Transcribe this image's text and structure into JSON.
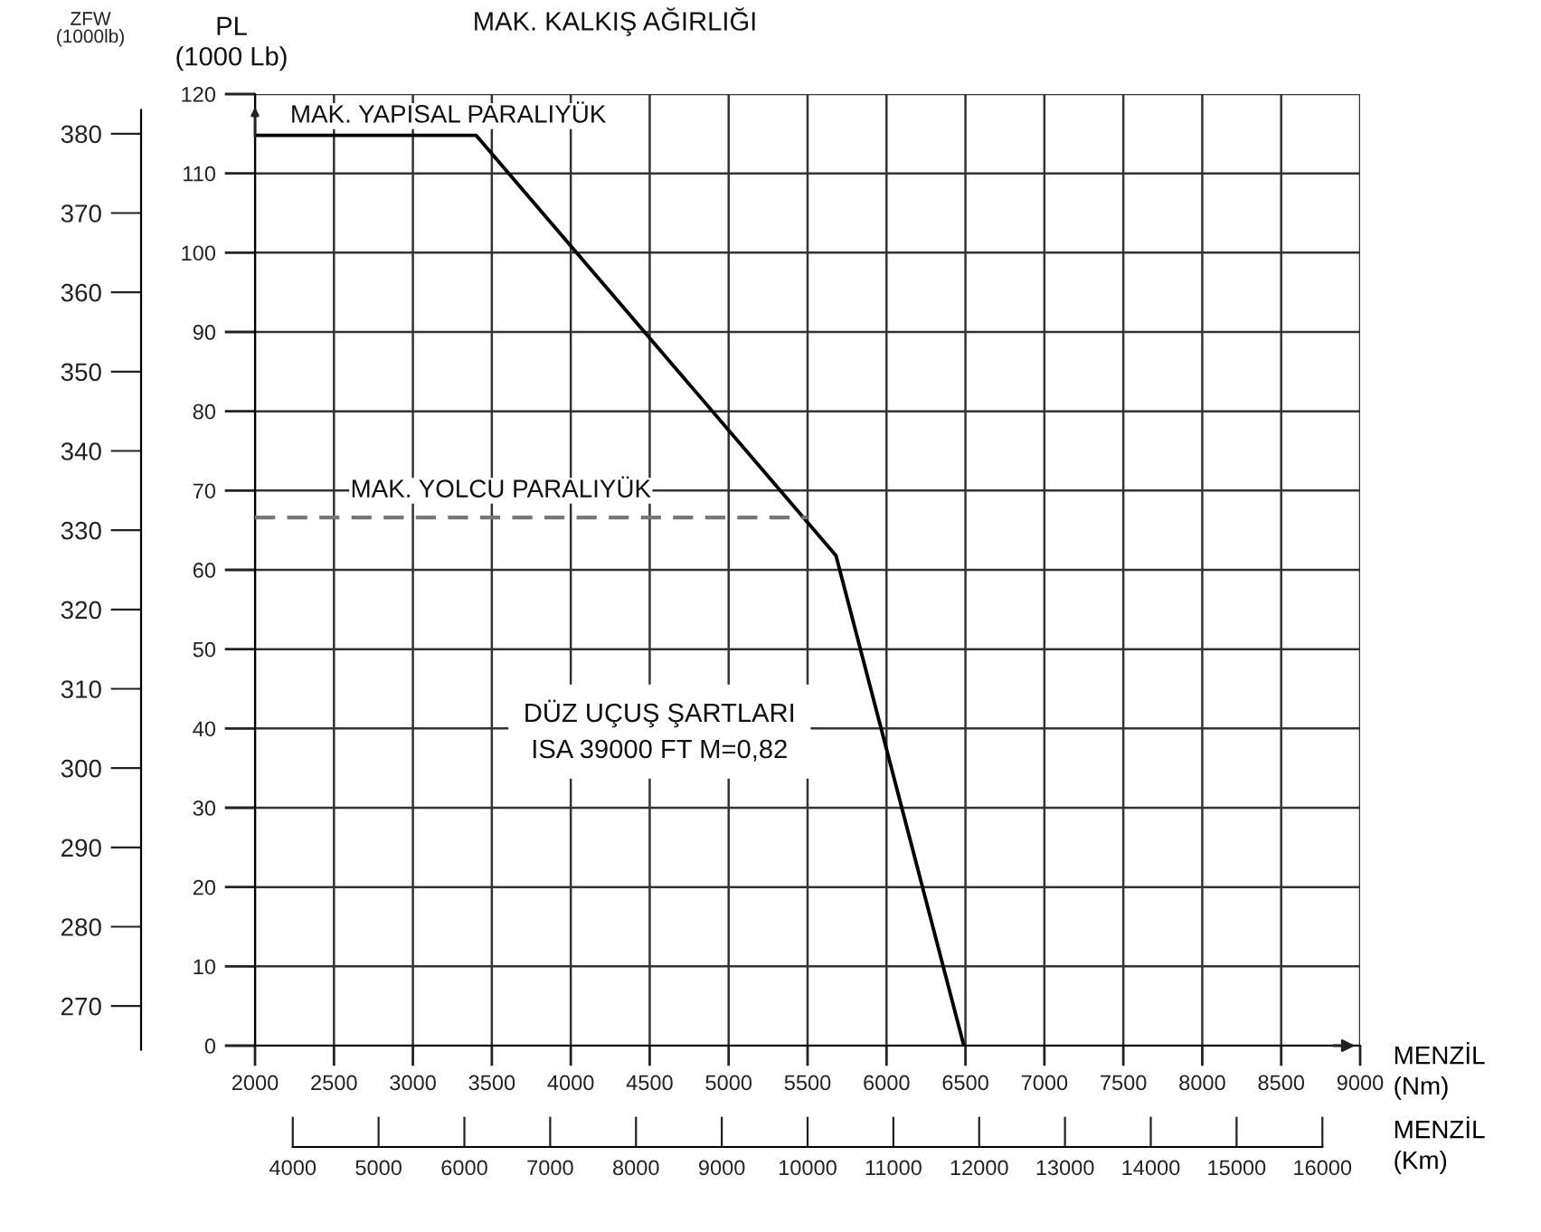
{
  "chart_data": {
    "type": "line",
    "title": "MAK. KALKIŞ AĞIRLIĞI",
    "xlabel": "MENZİL\n(Nm)",
    "ylabel": "PL\n(1000 Lb)",
    "y2label": "ZFW\n(1000lb)",
    "x2label": "MENZİL\n(Km)",
    "xlim": [
      2000,
      9000
    ],
    "xticks": [
      2000,
      2500,
      3000,
      3500,
      4000,
      4500,
      5000,
      5500,
      6000,
      6500,
      7000,
      7500,
      8000,
      8500,
      9000
    ],
    "ylim": [
      0,
      120
    ],
    "yticks": [
      0,
      10,
      20,
      30,
      40,
      50,
      60,
      70,
      80,
      90,
      100,
      110,
      120
    ],
    "y2lim": [
      265,
      385
    ],
    "y2ticks": [
      270,
      280,
      290,
      300,
      310,
      320,
      330,
      340,
      350,
      360,
      370,
      380
    ],
    "x2lim": [
      3560,
      16440
    ],
    "x2ticks": [
      4000,
      5000,
      6000,
      7000,
      8000,
      9000,
      10000,
      11000,
      12000,
      13000,
      14000,
      15000,
      16000
    ],
    "grid": true,
    "series": [
      {
        "color": "#000000",
        "line_style": "solid",
        "x": [
          2000,
          3400,
          5680,
          6490
        ],
        "values": [
          114.8,
          114.8,
          61.8,
          0
        ]
      },
      {
        "name": "MAK. YOLCU PARALIYÜK",
        "color": "#777777",
        "line_style": "dashed",
        "x": [
          2000,
          5500
        ],
        "values": [
          66.6,
          66.6
        ]
      }
    ],
    "annotations": [
      {
        "text": "MAK. YAPISAL PARALIYÜK",
        "x": 2000,
        "y": 114.8
      },
      "DÜZ UÇUŞ ŞARTLARI\nISA 39000 FT M=0,82"
    ]
  }
}
